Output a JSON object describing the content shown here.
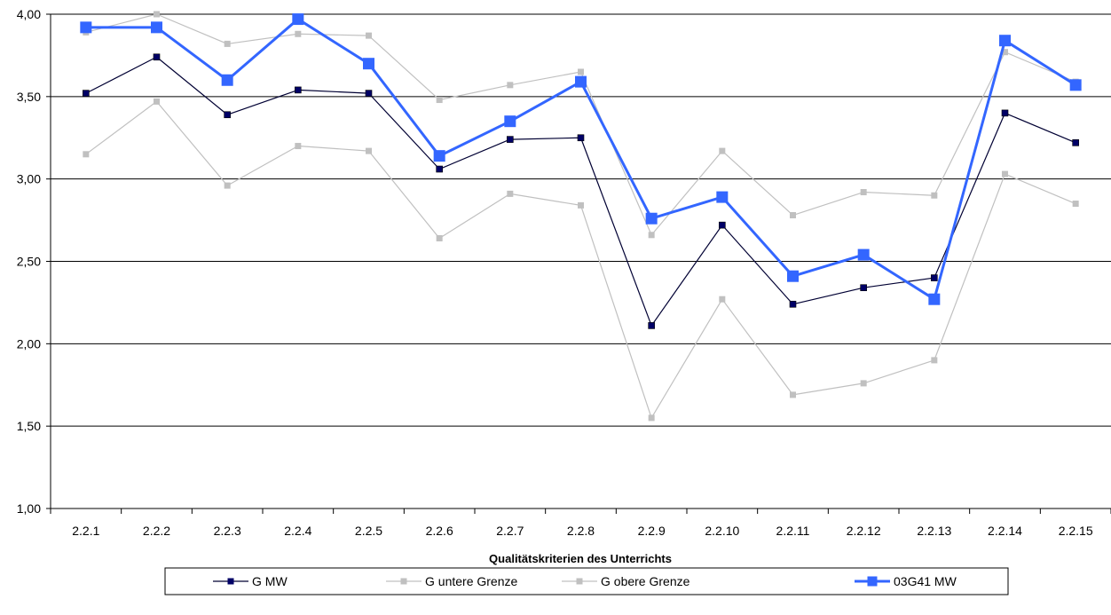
{
  "chart_data": {
    "type": "line",
    "title": "",
    "xlabel": "Qualitätskriterien des Unterrichts",
    "ylabel": "",
    "ylim": [
      1.0,
      4.0
    ],
    "yticks": [
      "1,00",
      "1,50",
      "2,00",
      "2,50",
      "3,00",
      "3,50",
      "4,00"
    ],
    "ytick_values": [
      1.0,
      1.5,
      2.0,
      2.5,
      3.0,
      3.5,
      4.0
    ],
    "grid": "horizontal",
    "legend_position": "bottom",
    "categories": [
      "2.2.1",
      "2.2.2",
      "2.2.3",
      "2.2.4",
      "2.2.5",
      "2.2.6",
      "2.2.7",
      "2.2.8",
      "2.2.9",
      "2.2.10",
      "2.2.11",
      "2.2.12",
      "2.2.13",
      "2.2.14",
      "2.2.15"
    ],
    "series": [
      {
        "name": "G MW",
        "color": "#000033",
        "marker_color": "#000066",
        "values": [
          3.52,
          3.74,
          3.39,
          3.54,
          3.52,
          3.06,
          3.24,
          3.25,
          2.11,
          2.72,
          2.24,
          2.34,
          2.4,
          3.4,
          3.22
        ]
      },
      {
        "name": "G untere Grenze",
        "color": "#c0c0c0",
        "marker_color": "#c0c0c0",
        "values": [
          3.15,
          3.47,
          2.96,
          3.2,
          3.17,
          2.64,
          2.91,
          2.84,
          1.55,
          2.27,
          1.69,
          1.76,
          1.9,
          3.03,
          2.85
        ]
      },
      {
        "name": "G obere Grenze",
        "color": "#c0c0c0",
        "marker_color": "#c0c0c0",
        "values": [
          3.89,
          4.0,
          3.82,
          3.88,
          3.87,
          3.48,
          3.57,
          3.65,
          2.66,
          3.17,
          2.78,
          2.92,
          2.9,
          3.77,
          3.59
        ]
      },
      {
        "name": "03G41 MW",
        "color": "#3366ff",
        "marker_color": "#3366ff",
        "values": [
          3.92,
          3.92,
          3.6,
          3.97,
          3.7,
          3.14,
          3.35,
          3.59,
          2.76,
          2.89,
          2.41,
          2.54,
          2.27,
          3.84,
          3.57
        ]
      }
    ]
  }
}
